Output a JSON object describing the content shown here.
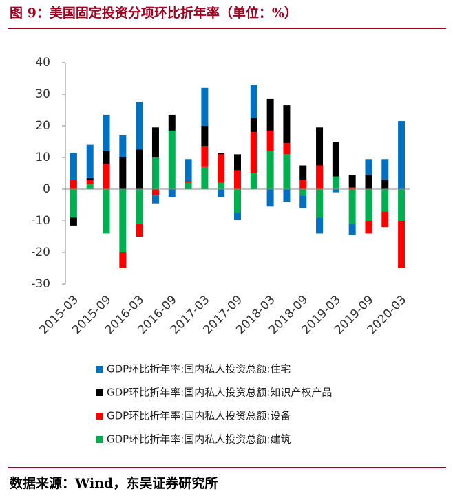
{
  "chart_data": {
    "type": "bar",
    "title": "图 9：美国固定投资分项环比折年率（单位：%）",
    "source": "数据来源：Wind，东吴证券研究所",
    "categories": [
      "2015-03",
      null,
      "2015-09",
      null,
      "2016-03",
      null,
      "2016-09",
      null,
      "2017-03",
      null,
      "2017-09",
      null,
      "2018-03",
      null,
      "2018-09",
      null,
      "2019-03",
      null,
      "2019-09",
      null,
      "2020-03"
    ],
    "series": [
      {
        "name": "GDP环比折年率:国内私人投资总额:建筑",
        "color": "#00b050",
        "values": [
          -9,
          1.5,
          -14,
          -20,
          -11,
          10,
          18.5,
          2,
          7,
          2,
          -7.5,
          5,
          12,
          11,
          -2,
          -9,
          4,
          -11,
          -10,
          -7,
          -10
        ]
      },
      {
        "name": "GDP环比折年率:国内私人投资总额:设备",
        "color": "#ff0000",
        "values": [
          3,
          1.5,
          8,
          -5,
          -4,
          -2,
          0,
          0.5,
          6.5,
          9,
          6,
          13,
          6.5,
          3.5,
          3,
          7.5,
          0,
          0.5,
          -4,
          -5,
          -15
        ]
      },
      {
        "name": "GDP环比折年率:国内私人投资总额:知识产权产品",
        "color": "#000000",
        "values": [
          -2.5,
          0.5,
          4,
          10,
          12.5,
          9.5,
          5,
          0,
          6.5,
          0.5,
          5,
          4.5,
          10,
          12,
          4.5,
          12,
          11,
          4,
          4.5,
          3,
          0
        ]
      },
      {
        "name": "GDP环比折年率:国内私人投资总额:住宅",
        "color": "#0070c0",
        "values": [
          8.5,
          10.5,
          11.5,
          7,
          15,
          -2.5,
          -2.5,
          7,
          12,
          -2.5,
          -2.3,
          10.5,
          -5.5,
          -4,
          -4,
          -5,
          -1,
          -3.5,
          5,
          6.5,
          21.5
        ]
      }
    ],
    "legend_order": [
      3,
      2,
      1,
      0
    ],
    "ylim": [
      -30,
      40
    ],
    "yticks": [
      -30,
      -20,
      -10,
      0,
      10,
      20,
      30,
      40
    ]
  }
}
